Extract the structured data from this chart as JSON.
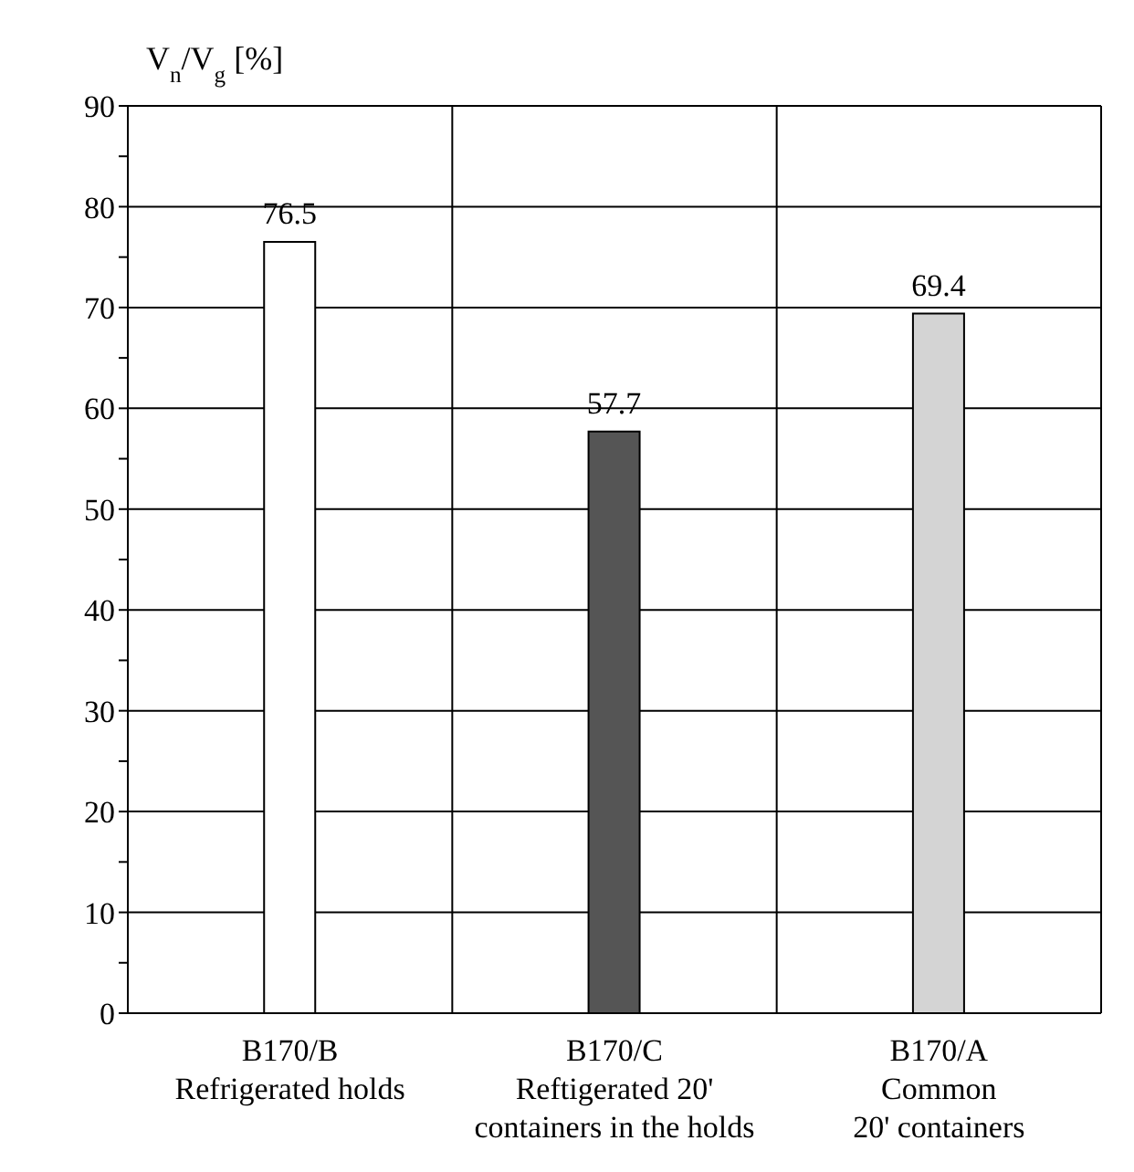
{
  "chart_data": {
    "type": "bar",
    "ylabel": "V$_{n}$/V$_{g}$ [%]",
    "categories": [
      "B170/B\nRefrigerated holds",
      "B170/C\nReftigerated 20'\ncontainers in the holds",
      "B170/A\nCommon\n20' containers"
    ],
    "values": [
      76.5,
      57.7,
      69.4
    ],
    "colors": [
      "#ffffff",
      "#555555",
      "#d4d4d4"
    ],
    "ylim": [
      0,
      90
    ],
    "yticks": [
      0,
      {
        "value": 5,
        "label": null
      },
      10,
      {
        "value": 15,
        "label": null
      },
      20,
      {
        "value": 25,
        "label": null
      },
      30,
      {
        "value": 35,
        "label": null
      },
      40,
      {
        "value": 45,
        "label": null
      },
      50,
      {
        "value": 55,
        "label": null
      },
      60,
      {
        "value": 65,
        "label": null
      },
      70,
      {
        "value": 75,
        "label": null
      },
      80,
      {
        "value": 85,
        "label": null
      },
      90
    ],
    "grid": true,
    "data_labels": true
  }
}
